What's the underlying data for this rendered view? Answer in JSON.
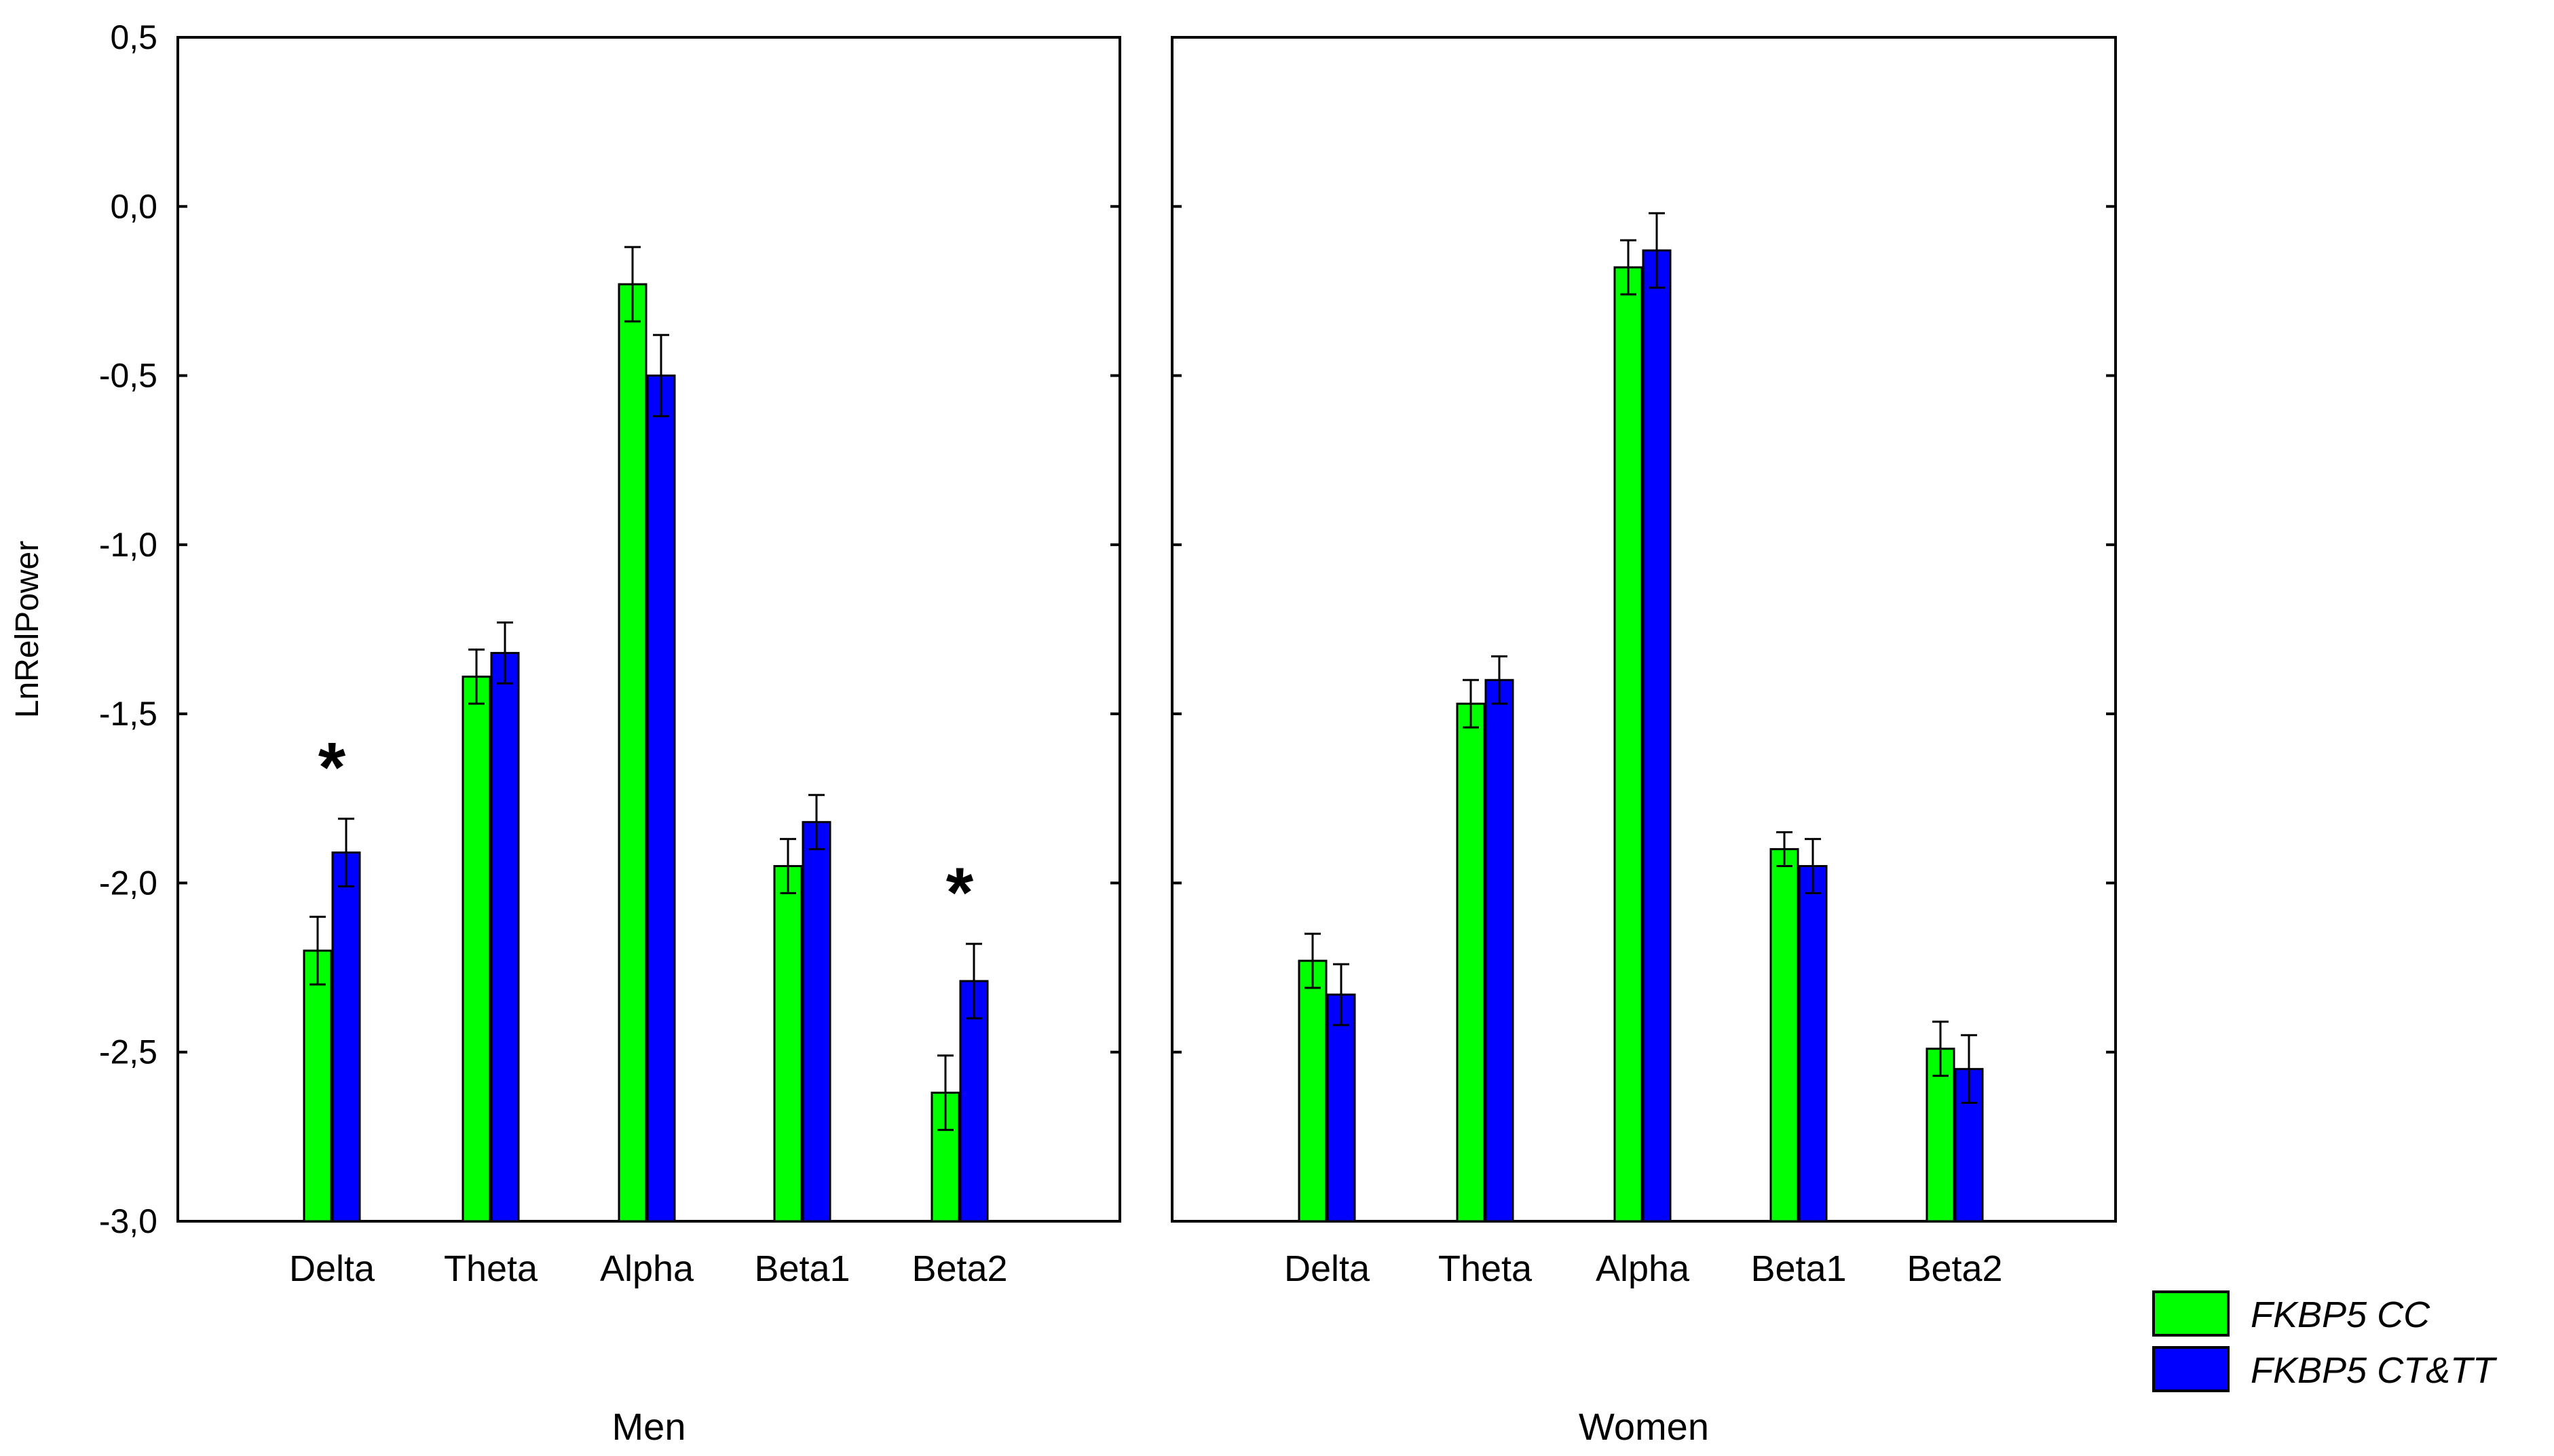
{
  "chart_data": {
    "type": "bar",
    "ylabel": "LnRelPower",
    "ylim": [
      -3.0,
      0.5
    ],
    "y_ticks": [
      0.5,
      0.0,
      -0.5,
      -1.0,
      -1.5,
      -2.0,
      -2.5,
      -3.0
    ],
    "y_tick_labels": [
      "0,5",
      "0,0",
      "-0,5",
      "-1,0",
      "-1,5",
      "-2,0",
      "-2,5",
      "-3,0"
    ],
    "categories": [
      "Delta",
      "Theta",
      "Alpha",
      "Beta1",
      "Beta2"
    ],
    "legend_position": "bottom-right",
    "series_meta": [
      {
        "name": "FKBP5 CC",
        "color": "#00ff00"
      },
      {
        "name": "FKBP5 CT&TT",
        "color": "#0000ff"
      }
    ],
    "panels": [
      {
        "title": "Men",
        "series": [
          {
            "name": "FKBP5 CC",
            "values": [
              -2.2,
              -1.39,
              -0.23,
              -1.95,
              -2.62
            ],
            "errors": [
              0.1,
              0.08,
              0.11,
              0.08,
              0.11
            ]
          },
          {
            "name": "FKBP5 CT&TT",
            "values": [
              -1.91,
              -1.32,
              -0.5,
              -1.82,
              -2.29
            ],
            "errors": [
              0.1,
              0.09,
              0.12,
              0.08,
              0.11
            ]
          }
        ],
        "annotations": [
          {
            "category": "Delta",
            "text": "*"
          },
          {
            "category": "Beta2",
            "text": "*"
          }
        ]
      },
      {
        "title": "Women",
        "series": [
          {
            "name": "FKBP5 CC",
            "values": [
              -2.23,
              -1.47,
              -0.18,
              -1.9,
              -2.49
            ],
            "errors": [
              0.08,
              0.07,
              0.08,
              0.05,
              0.08
            ]
          },
          {
            "name": "FKBP5 CT&TT",
            "values": [
              -2.33,
              -1.4,
              -0.13,
              -1.95,
              -2.55
            ],
            "errors": [
              0.09,
              0.07,
              0.11,
              0.08,
              0.1
            ]
          }
        ],
        "annotations": []
      }
    ]
  }
}
